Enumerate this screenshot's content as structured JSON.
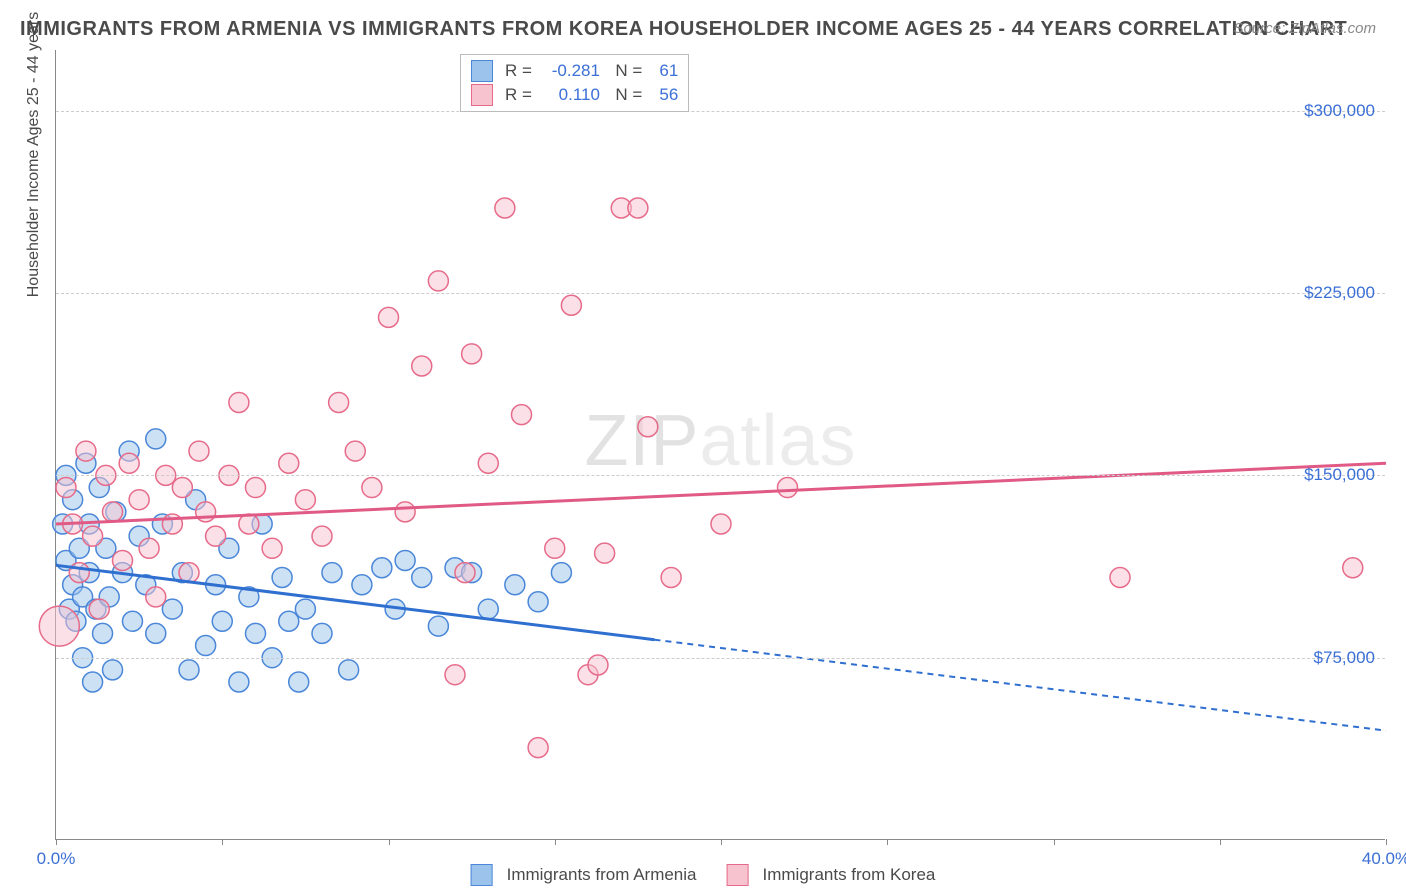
{
  "title": "IMMIGRANTS FROM ARMENIA VS IMMIGRANTS FROM KOREA HOUSEHOLDER INCOME AGES 25 - 44 YEARS CORRELATION CHART",
  "source": "Source: ZipAtlas.com",
  "watermark_a": "ZIP",
  "watermark_b": "atlas",
  "y_axis_label": "Householder Income Ages 25 - 44 years",
  "chart": {
    "type": "scatter",
    "background_color": "#ffffff",
    "grid_color": "#cccccc",
    "xlim": [
      0,
      40
    ],
    "ylim": [
      0,
      325000
    ],
    "x_ticks": [
      0,
      5,
      10,
      15,
      20,
      25,
      30,
      35,
      40
    ],
    "x_tick_labels": {
      "0": "0.0%",
      "40": "40.0%"
    },
    "y_ticks": [
      75000,
      150000,
      225000,
      300000
    ],
    "y_tick_labels": {
      "75000": "$75,000",
      "150000": "$150,000",
      "225000": "$225,000",
      "300000": "$300,000"
    },
    "marker_radius": 10,
    "marker_large_radius": 20,
    "marker_opacity": 0.5,
    "series": [
      {
        "name": "Immigrants from Armenia",
        "fill": "#9cc3ec",
        "stroke": "#4a87d8",
        "r_value": "-0.281",
        "n_value": "61",
        "trend": {
          "y_at_x0": 113000,
          "y_at_x40": 45000,
          "solid_until_x": 18,
          "color": "#2e6fd0"
        },
        "points": [
          [
            0.2,
            130000
          ],
          [
            0.3,
            150000
          ],
          [
            0.3,
            115000
          ],
          [
            0.4,
            95000
          ],
          [
            0.5,
            140000
          ],
          [
            0.5,
            105000
          ],
          [
            0.6,
            90000
          ],
          [
            0.7,
            120000
          ],
          [
            0.8,
            100000
          ],
          [
            0.8,
            75000
          ],
          [
            0.9,
            155000
          ],
          [
            1.0,
            110000
          ],
          [
            1.0,
            130000
          ],
          [
            1.1,
            65000
          ],
          [
            1.2,
            95000
          ],
          [
            1.3,
            145000
          ],
          [
            1.4,
            85000
          ],
          [
            1.5,
            120000
          ],
          [
            1.6,
            100000
          ],
          [
            1.7,
            70000
          ],
          [
            1.8,
            135000
          ],
          [
            2.0,
            110000
          ],
          [
            2.2,
            160000
          ],
          [
            2.3,
            90000
          ],
          [
            2.5,
            125000
          ],
          [
            2.7,
            105000
          ],
          [
            3.0,
            165000
          ],
          [
            3.0,
            85000
          ],
          [
            3.2,
            130000
          ],
          [
            3.5,
            95000
          ],
          [
            3.8,
            110000
          ],
          [
            4.0,
            70000
          ],
          [
            4.2,
            140000
          ],
          [
            4.5,
            80000
          ],
          [
            4.8,
            105000
          ],
          [
            5.0,
            90000
          ],
          [
            5.2,
            120000
          ],
          [
            5.5,
            65000
          ],
          [
            5.8,
            100000
          ],
          [
            6.0,
            85000
          ],
          [
            6.2,
            130000
          ],
          [
            6.5,
            75000
          ],
          [
            6.8,
            108000
          ],
          [
            7.0,
            90000
          ],
          [
            7.3,
            65000
          ],
          [
            7.5,
            95000
          ],
          [
            8.0,
            85000
          ],
          [
            8.3,
            110000
          ],
          [
            8.8,
            70000
          ],
          [
            9.2,
            105000
          ],
          [
            9.8,
            112000
          ],
          [
            10.2,
            95000
          ],
          [
            10.5,
            115000
          ],
          [
            11.0,
            108000
          ],
          [
            11.5,
            88000
          ],
          [
            12.0,
            112000
          ],
          [
            12.5,
            110000
          ],
          [
            13.0,
            95000
          ],
          [
            13.8,
            105000
          ],
          [
            14.5,
            98000
          ],
          [
            15.2,
            110000
          ]
        ]
      },
      {
        "name": "Immigrants from Korea",
        "fill": "#f7c3cf",
        "stroke": "#e66b8a",
        "r_value": "0.110",
        "n_value": "56",
        "trend": {
          "y_at_x0": 130000,
          "y_at_x40": 155000,
          "solid_until_x": 40,
          "color": "#e05a85"
        },
        "points": [
          [
            0.1,
            88000,
            20
          ],
          [
            0.3,
            145000
          ],
          [
            0.5,
            130000
          ],
          [
            0.7,
            110000
          ],
          [
            0.9,
            160000
          ],
          [
            1.1,
            125000
          ],
          [
            1.3,
            95000
          ],
          [
            1.5,
            150000
          ],
          [
            1.7,
            135000
          ],
          [
            2.0,
            115000
          ],
          [
            2.2,
            155000
          ],
          [
            2.5,
            140000
          ],
          [
            2.8,
            120000
          ],
          [
            3.0,
            100000
          ],
          [
            3.3,
            150000
          ],
          [
            3.5,
            130000
          ],
          [
            3.8,
            145000
          ],
          [
            4.0,
            110000
          ],
          [
            4.3,
            160000
          ],
          [
            4.5,
            135000
          ],
          [
            4.8,
            125000
          ],
          [
            5.2,
            150000
          ],
          [
            5.5,
            180000
          ],
          [
            5.8,
            130000
          ],
          [
            6.0,
            145000
          ],
          [
            6.5,
            120000
          ],
          [
            7.0,
            155000
          ],
          [
            7.5,
            140000
          ],
          [
            8.0,
            125000
          ],
          [
            8.5,
            180000
          ],
          [
            9.0,
            160000
          ],
          [
            9.5,
            145000
          ],
          [
            10.0,
            215000
          ],
          [
            10.5,
            135000
          ],
          [
            11.0,
            195000
          ],
          [
            11.5,
            230000
          ],
          [
            12.0,
            68000
          ],
          [
            12.3,
            110000
          ],
          [
            12.5,
            200000
          ],
          [
            13.0,
            155000
          ],
          [
            13.5,
            260000
          ],
          [
            14.0,
            175000
          ],
          [
            14.5,
            38000
          ],
          [
            15.0,
            120000
          ],
          [
            15.5,
            220000
          ],
          [
            16.0,
            68000
          ],
          [
            16.3,
            72000
          ],
          [
            16.5,
            118000
          ],
          [
            17.0,
            260000
          ],
          [
            17.5,
            260000
          ],
          [
            17.8,
            170000
          ],
          [
            18.5,
            108000
          ],
          [
            20.0,
            130000
          ],
          [
            22.0,
            145000
          ],
          [
            32.0,
            108000
          ],
          [
            39.0,
            112000
          ]
        ]
      }
    ]
  },
  "legend_bottom": [
    {
      "label": "Immigrants from Armenia",
      "fill": "#9cc3ec",
      "stroke": "#4a87d8"
    },
    {
      "label": "Immigrants from Korea",
      "fill": "#f7c3cf",
      "stroke": "#e66b8a"
    }
  ]
}
